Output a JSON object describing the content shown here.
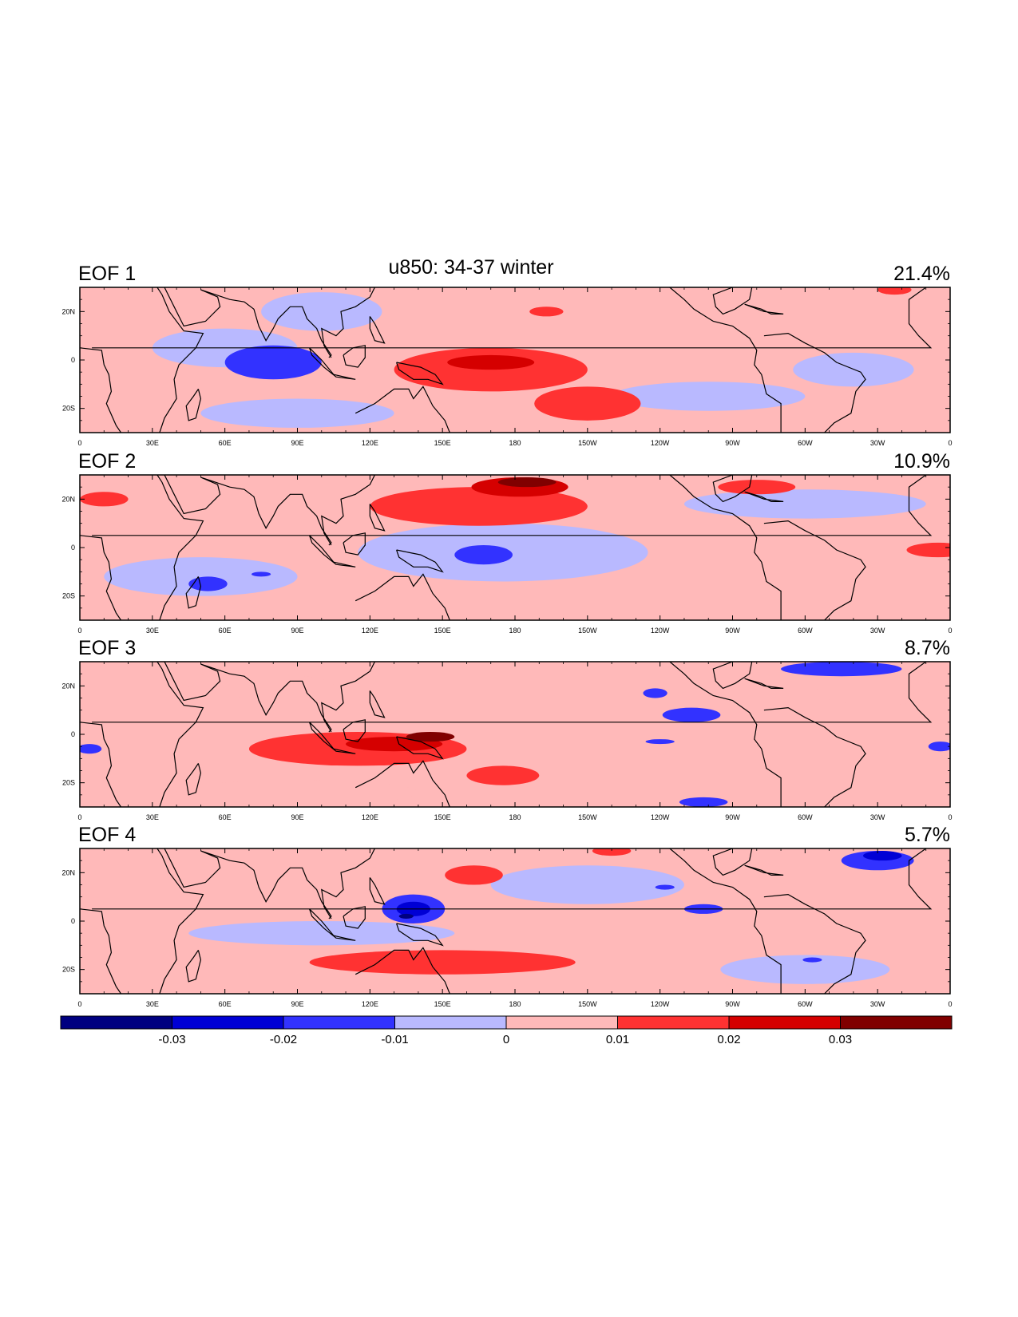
{
  "figure": {
    "title": "u850: 34-37 winter"
  },
  "panels": [
    {
      "label": "EOF 1",
      "variance": "21.4%",
      "features": [
        {
          "name": "indian-ocean-negative",
          "lon": 80,
          "lat": -1,
          "rx": 20,
          "ry": 7,
          "value": -0.015
        },
        {
          "name": "arabian-sea-weak-negative",
          "lon": 60,
          "lat": 5,
          "rx": 30,
          "ry": 8,
          "value": -0.005
        },
        {
          "name": "bay-of-bengal-weak-negative",
          "lon": 100,
          "lat": 20,
          "rx": 25,
          "ry": 8,
          "value": -0.005
        },
        {
          "name": "south-indian-weak-negative",
          "lon": 90,
          "lat": -22,
          "rx": 40,
          "ry": 6,
          "value": -0.005
        },
        {
          "name": "east-pacific-weak-negative",
          "lon": 260,
          "lat": -15,
          "rx": 40,
          "ry": 6,
          "value": -0.005
        },
        {
          "name": "atlantic-weak-negative",
          "lon": 320,
          "lat": -4,
          "rx": 25,
          "ry": 7,
          "value": -0.005
        },
        {
          "name": "west-pacific-positive",
          "lon": 170,
          "lat": -4,
          "rx": 40,
          "ry": 9,
          "value": 0.015
        },
        {
          "name": "west-pacific-strong-positive",
          "lon": 170,
          "lat": -1,
          "rx": 18,
          "ry": 3,
          "value": 0.025
        },
        {
          "name": "south-pacific-positive-tail",
          "lon": 210,
          "lat": -18,
          "rx": 22,
          "ry": 7,
          "value": 0.015
        },
        {
          "name": "north-pacific-positive-spot",
          "lon": 193,
          "lat": 20,
          "rx": 7,
          "ry": 2,
          "value": 0.015
        },
        {
          "name": "north-atlantic-positive-spot",
          "lon": 337,
          "lat": 29,
          "rx": 7,
          "ry": 2,
          "value": 0.015
        }
      ]
    },
    {
      "label": "EOF 2",
      "variance": "10.9%",
      "features": [
        {
          "name": "central-pacific-weak-negative",
          "lon": 175,
          "lat": -2,
          "rx": 60,
          "ry": 12,
          "value": -0.005
        },
        {
          "name": "south-indian-weak-negative",
          "lon": 50,
          "lat": -12,
          "rx": 40,
          "ry": 8,
          "value": -0.005
        },
        {
          "name": "west-atlantic-weak-negative",
          "lon": 300,
          "lat": 18,
          "rx": 50,
          "ry": 6,
          "value": -0.005
        },
        {
          "name": "pacific-negative",
          "lon": 167,
          "lat": -3,
          "rx": 12,
          "ry": 4,
          "value": -0.015
        },
        {
          "name": "madagascar-negative",
          "lon": 53,
          "lat": -15,
          "rx": 8,
          "ry": 3,
          "value": -0.015
        },
        {
          "name": "indian-negative-spot",
          "lon": 75,
          "lat": -11,
          "rx": 4,
          "ry": 1,
          "value": -0.015
        },
        {
          "name": "northwest-pacific-positive",
          "lon": 165,
          "lat": 17,
          "rx": 45,
          "ry": 8,
          "value": 0.015
        },
        {
          "name": "northwest-pacific-strong-positive",
          "lon": 182,
          "lat": 25,
          "rx": 20,
          "ry": 4,
          "value": 0.025
        },
        {
          "name": "northwest-pacific-max-positive",
          "lon": 185,
          "lat": 27,
          "rx": 12,
          "ry": 2,
          "value": 0.035
        },
        {
          "name": "arabian-positive",
          "lon": 10,
          "lat": 20,
          "rx": 10,
          "ry": 3,
          "value": 0.015
        },
        {
          "name": "atlantic-positive",
          "lon": 355,
          "lat": -1,
          "rx": 13,
          "ry": 3,
          "value": 0.015
        },
        {
          "name": "caribbean-positive",
          "lon": 280,
          "lat": 25,
          "rx": 16,
          "ry": 3,
          "value": 0.015
        }
      ]
    },
    {
      "label": "EOF 3",
      "variance": "8.7%",
      "features": [
        {
          "name": "maritime-continent-positive",
          "lon": 115,
          "lat": -6,
          "rx": 45,
          "ry": 7,
          "value": 0.015
        },
        {
          "name": "maritime-strong-positive",
          "lon": 130,
          "lat": -4,
          "rx": 20,
          "ry": 3,
          "value": 0.025
        },
        {
          "name": "maritime-max-positive",
          "lon": 145,
          "lat": -1,
          "rx": 10,
          "ry": 2,
          "value": 0.035
        },
        {
          "name": "coral-sea-positive-tail",
          "lon": 175,
          "lat": -17,
          "rx": 15,
          "ry": 4,
          "value": 0.015
        },
        {
          "name": "south-indian-weak-positive",
          "lon": 90,
          "lat": -24,
          "rx": 50,
          "ry": 5,
          "value": 0.005
        },
        {
          "name": "north-indian-weak-positive",
          "lon": 75,
          "lat": 20,
          "rx": 30,
          "ry": 5,
          "value": 0.005
        },
        {
          "name": "atlantic-weak-positive",
          "lon": 330,
          "lat": 18,
          "rx": 25,
          "ry": 6,
          "value": 0.005
        },
        {
          "name": "caribbean-negative",
          "lon": 315,
          "lat": 27,
          "rx": 25,
          "ry": 3,
          "value": -0.015
        },
        {
          "name": "east-pacific-negative",
          "lon": 253,
          "lat": 8,
          "rx": 12,
          "ry": 3,
          "value": -0.015
        },
        {
          "name": "north-pacific-negative-spot",
          "lon": 238,
          "lat": 17,
          "rx": 5,
          "ry": 2,
          "value": -0.015
        },
        {
          "name": "south-pacific-negative-spot",
          "lon": 240,
          "lat": -3,
          "rx": 6,
          "ry": 1,
          "value": -0.015
        },
        {
          "name": "west-africa-negative",
          "lon": 4,
          "lat": -6,
          "rx": 5,
          "ry": 2,
          "value": -0.015
        },
        {
          "name": "atlantic-negative-edge",
          "lon": 356,
          "lat": -5,
          "rx": 5,
          "ry": 2,
          "value": -0.015
        },
        {
          "name": "south-pacific-negative-edge",
          "lon": 258,
          "lat": -28,
          "rx": 10,
          "ry": 2,
          "value": -0.015
        }
      ]
    },
    {
      "label": "EOF 4",
      "variance": "5.7%",
      "features": [
        {
          "name": "philippine-sea-negative",
          "lon": 138,
          "lat": 5,
          "rx": 13,
          "ry": 6,
          "value": -0.015
        },
        {
          "name": "philippine-sea-strong-negative",
          "lon": 138,
          "lat": 5,
          "rx": 7,
          "ry": 3,
          "value": -0.025
        },
        {
          "name": "philippine-sea-max-negative",
          "lon": 135,
          "lat": 2,
          "rx": 3,
          "ry": 1,
          "value": -0.035
        },
        {
          "name": "caribbean-negative",
          "lon": 330,
          "lat": 25,
          "rx": 15,
          "ry": 4,
          "value": -0.015
        },
        {
          "name": "caribbean-strong-negative",
          "lon": 332,
          "lat": 27,
          "rx": 8,
          "ry": 2,
          "value": -0.025
        },
        {
          "name": "east-pacific-negative",
          "lon": 258,
          "lat": 5,
          "rx": 8,
          "ry": 2,
          "value": -0.015
        },
        {
          "name": "north-pacific-negative-spot",
          "lon": 242,
          "lat": 14,
          "rx": 4,
          "ry": 1,
          "value": -0.015
        },
        {
          "name": "brazil-negative-spot",
          "lon": 303,
          "lat": -16,
          "rx": 4,
          "ry": 1,
          "value": -0.015
        },
        {
          "name": "northwest-pacific-positive",
          "lon": 163,
          "lat": 19,
          "rx": 12,
          "ry": 4,
          "value": 0.015
        },
        {
          "name": "south-positive-band",
          "lon": 150,
          "lat": -17,
          "rx": 55,
          "ry": 5,
          "value": 0.015
        },
        {
          "name": "north-pacific-positive-edge",
          "lon": 220,
          "lat": 29,
          "rx": 8,
          "ry": 2,
          "value": 0.015
        },
        {
          "name": "indian-weak-negative",
          "lon": 100,
          "lat": -5,
          "rx": 55,
          "ry": 5,
          "value": -0.005
        },
        {
          "name": "pacific-weak-negative",
          "lon": 210,
          "lat": 15,
          "rx": 40,
          "ry": 8,
          "value": -0.005
        },
        {
          "name": "south-america-weak-negative",
          "lon": 300,
          "lat": -20,
          "rx": 35,
          "ry": 6,
          "value": -0.005
        }
      ]
    }
  ],
  "axes": {
    "lon_labels": [
      "0",
      "30E",
      "60E",
      "90E",
      "120E",
      "150E",
      "180",
      "150W",
      "120W",
      "90W",
      "60W",
      "30W",
      "0"
    ],
    "lat_labels": [
      "20N",
      "0",
      "20S"
    ],
    "lon_values": [
      0,
      30,
      60,
      90,
      120,
      150,
      180,
      210,
      240,
      270,
      300,
      330,
      360
    ],
    "lat_values": [
      20,
      0,
      -20
    ],
    "lon_range": [
      0,
      360
    ],
    "lat_range": [
      -30,
      30
    ]
  },
  "colorbar": {
    "labels": [
      "-0.03",
      "-0.02",
      "-0.01",
      "0",
      "0.01",
      "0.02",
      "0.03"
    ],
    "levels": [
      -0.03,
      -0.02,
      -0.01,
      0,
      0.01,
      0.02,
      0.03
    ],
    "colors": [
      "#000080",
      "#0000d5",
      "#3232ff",
      "#b9b9ff",
      "#ffb9b9",
      "#ff3232",
      "#d50000",
      "#800000"
    ]
  },
  "chart_data": {
    "type": "heatmap",
    "title": "u850: 34-37 winter",
    "panels": [
      "EOF 1",
      "EOF 2",
      "EOF 3",
      "EOF 4"
    ],
    "variance_explained": [
      21.4,
      10.9,
      8.7,
      5.7
    ],
    "xlim": [
      0,
      360
    ],
    "ylim": [
      -30,
      30
    ],
    "levels": [
      -0.03,
      -0.02,
      -0.01,
      0,
      0.01,
      0.02,
      0.03
    ]
  }
}
